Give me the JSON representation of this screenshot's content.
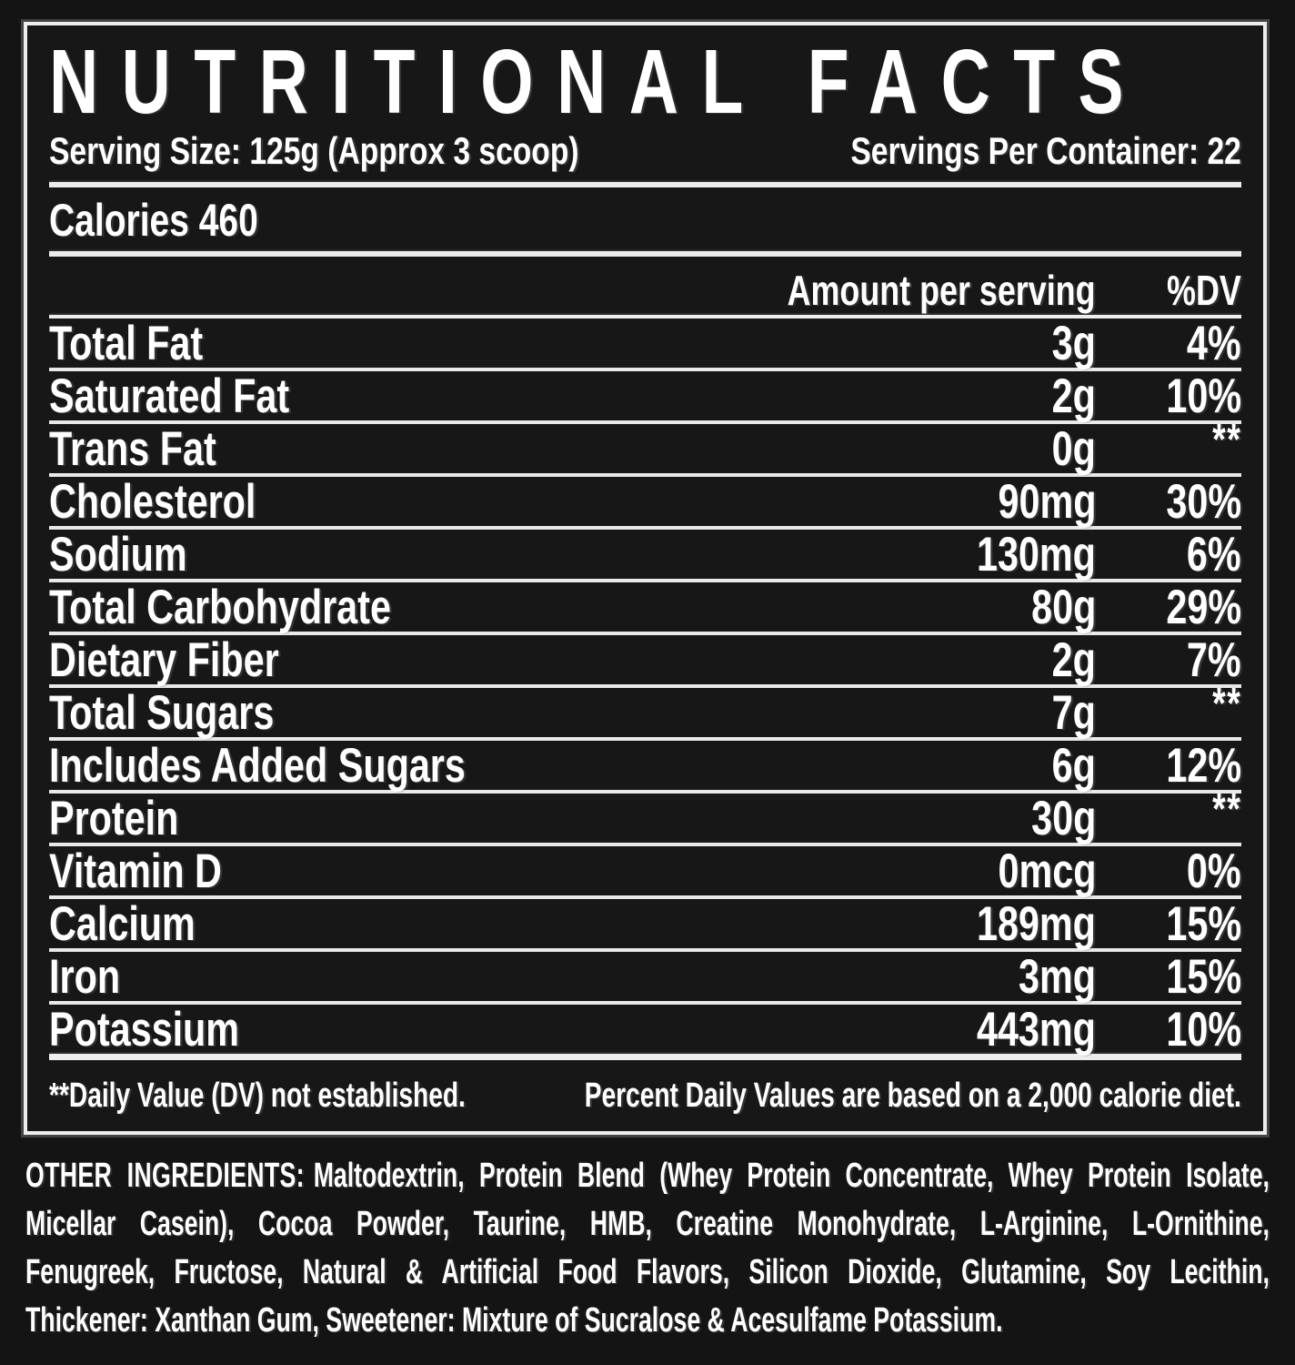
{
  "colors": {
    "background": "#141414",
    "panel_background": "#171717",
    "border_and_rules": "#ededed",
    "text": "#ffffff"
  },
  "label": {
    "title": "NUTRITIONAL FACTS",
    "serving_size": "Serving Size: 125g (Approx 3 scoop)",
    "servings_per_container": "Servings Per Container: 22",
    "calories": "Calories 460",
    "columns": {
      "amount": "Amount per serving",
      "dv": "%DV"
    },
    "rows": [
      {
        "name": "Total Fat",
        "amount": "3g",
        "dv": "4%"
      },
      {
        "name": "Saturated Fat",
        "amount": "2g",
        "dv": "10%"
      },
      {
        "name": "Trans Fat",
        "amount": "0g",
        "dv": "**"
      },
      {
        "name": "Cholesterol",
        "amount": "90mg",
        "dv": "30%"
      },
      {
        "name": "Sodium",
        "amount": "130mg",
        "dv": "6%"
      },
      {
        "name": "Total Carbohydrate",
        "amount": "80g",
        "dv": "29%"
      },
      {
        "name": "Dietary Fiber",
        "amount": "2g",
        "dv": "7%"
      },
      {
        "name": "Total Sugars",
        "amount": "7g",
        "dv": "**"
      },
      {
        "name": "Includes Added Sugars",
        "amount": "6g",
        "dv": "12%"
      },
      {
        "name": "Protein",
        "amount": "30g",
        "dv": "**"
      },
      {
        "name": "Vitamin D",
        "amount": "0mcg",
        "dv": "0%"
      },
      {
        "name": "Calcium",
        "amount": "189mg",
        "dv": "15%"
      },
      {
        "name": "Iron",
        "amount": "3mg",
        "dv": "15%"
      },
      {
        "name": "Potassium",
        "amount": "443mg",
        "dv": "10%"
      }
    ],
    "footnotes": {
      "left": "**Daily Value (DV) not established.",
      "right": "Percent Daily Values are based on a 2,000 calorie diet."
    }
  },
  "ingredients": {
    "heading": "OTHER INGREDIENTS:",
    "lines": [
      "Maltodextrin, Protein Blend (Whey Protein Concentrate, Whey Protein Isolate,",
      "Micellar Casein), Cocoa Powder, Taurine, HMB, Creatine Monohydrate, L-Arginine, L-Ornithine,",
      "Fenugreek, Fructose, Natural & Artificial Food Flavors, Silicon Dioxide, Glutamine, Soy Lecithin,",
      "Thickener: Xanthan Gum, Sweetener: Mixture of Sucralose & Acesulfame Potassium."
    ]
  }
}
